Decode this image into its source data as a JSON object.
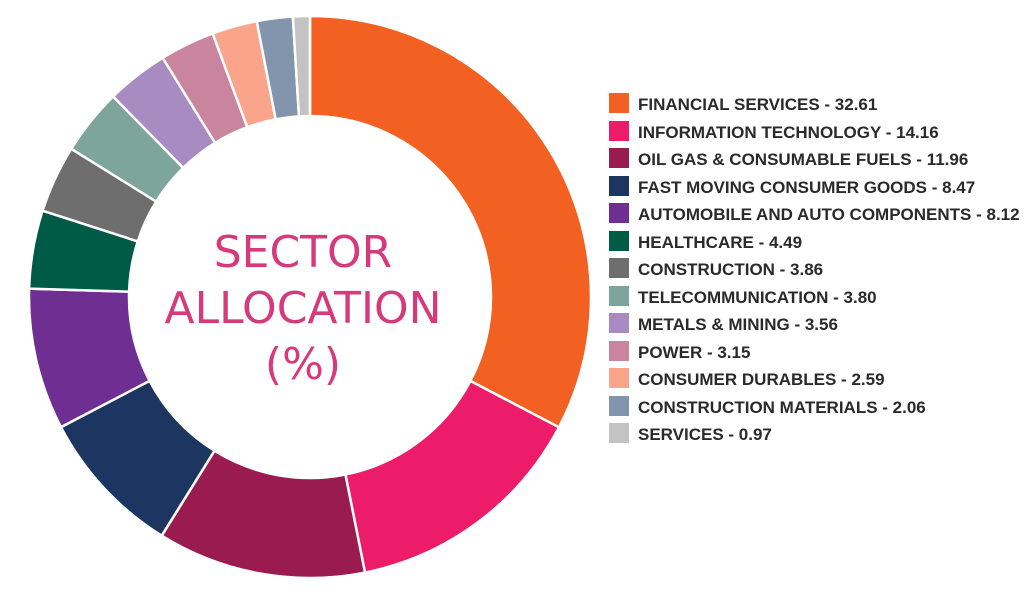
{
  "chart_data": {
    "type": "pie",
    "title": "SECTOR ALLOCATION (%)",
    "title_lines": [
      "SECTOR",
      "ALLOCATION",
      "(%)"
    ],
    "legend_placement": "right",
    "slices": [
      {
        "name": "FINANCIAL SERVICES",
        "value": 32.61,
        "color": "#f26122",
        "label": "FINANCIAL SERVICES - 32.61"
      },
      {
        "name": "INFORMATION TECHNOLOGY",
        "value": 14.16,
        "color": "#ec1c6a",
        "label": "INFORMATION TECHNOLOGY - 14.16"
      },
      {
        "name": "OIL GAS & CONSUMABLE FUELS",
        "value": 11.96,
        "color": "#9a1b4f",
        "label": "OIL GAS & CONSUMABLE FUELS - 11.96"
      },
      {
        "name": "FAST MOVING CONSUMER GOODS",
        "value": 8.47,
        "color": "#1c3561",
        "label": "FAST MOVING CONSUMER GOODS - 8.47"
      },
      {
        "name": "AUTOMOBILE AND AUTO COMPONENTS",
        "value": 8.12,
        "color": "#6f2f92",
        "label": "AUTOMOBILE AND AUTO COMPONENTS - 8.12"
      },
      {
        "name": "HEALTHCARE",
        "value": 4.49,
        "color": "#005b46",
        "label": "HEALTHCARE - 4.49"
      },
      {
        "name": "CONSTRUCTION",
        "value": 3.86,
        "color": "#6e6e6f",
        "label": "CONSTRUCTION - 3.86"
      },
      {
        "name": "TELECOMMUNICATION",
        "value": 3.8,
        "color": "#7ea59b",
        "label": "TELECOMMUNICATION - 3.80"
      },
      {
        "name": "METALS & MINING",
        "value": 3.56,
        "color": "#a78bc1",
        "label": "METALS & MINING - 3.56"
      },
      {
        "name": "POWER",
        "value": 3.15,
        "color": "#c9859d",
        "label": "POWER - 3.15"
      },
      {
        "name": "CONSUMER DURABLES",
        "value": 2.59,
        "color": "#f9a48b",
        "label": "CONSUMER DURABLES - 2.59"
      },
      {
        "name": "CONSTRUCTION MATERIALS",
        "value": 2.06,
        "color": "#8395ad",
        "label": "CONSTRUCTION MATERIALS - 2.06"
      },
      {
        "name": "SERVICES",
        "value": 0.97,
        "color": "#c3c3c3",
        "label": "SERVICES - 0.97"
      }
    ]
  }
}
